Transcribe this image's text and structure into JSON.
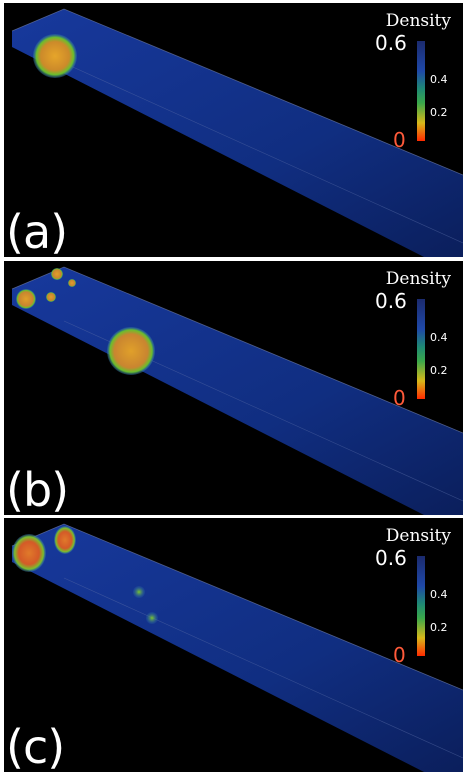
{
  "panels": [
    {
      "label": "(a)",
      "colorbar": {
        "title": "Density",
        "max": "0.6",
        "mid_high": "0.4",
        "mid_low": "0.2",
        "min": "0"
      }
    },
    {
      "label": "(b)",
      "colorbar": {
        "title": "Density",
        "max": "0.6",
        "mid_high": "0.4",
        "mid_low": "0.2",
        "min": "0"
      }
    },
    {
      "label": "(c)",
      "colorbar": {
        "title": "Density",
        "max": "0.6",
        "mid_high": "0.4",
        "mid_low": "0.2",
        "min": "0"
      }
    }
  ],
  "colors": {
    "background": "#000000",
    "low_density": "#1f3fa8",
    "high_density": "#ff2a00",
    "mid_density": "#3aa84b"
  }
}
